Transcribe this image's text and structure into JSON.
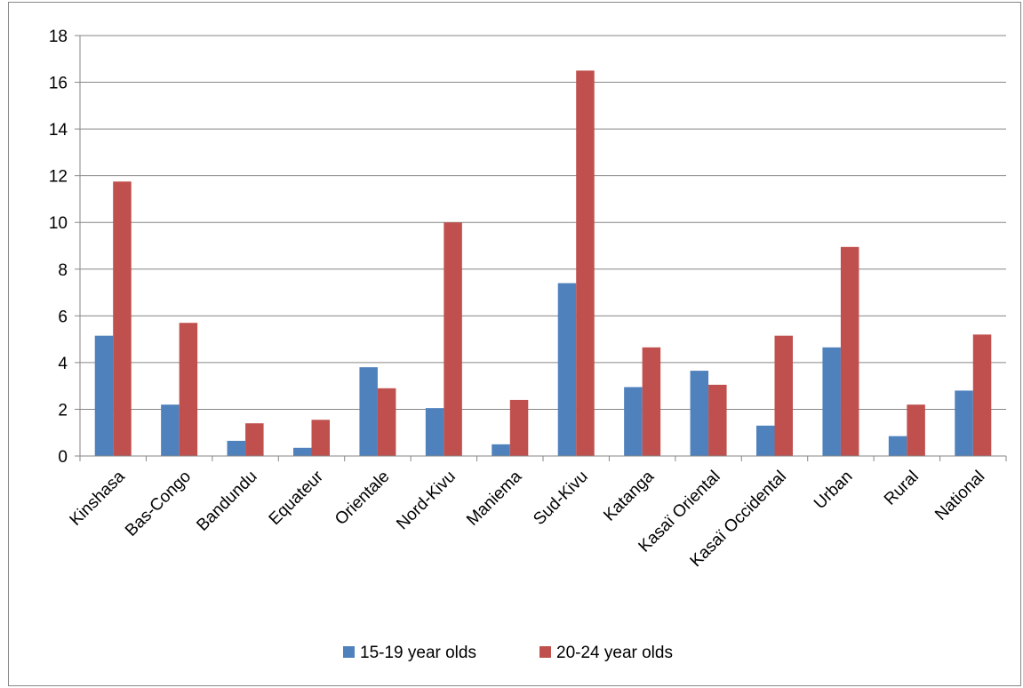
{
  "chart_data": {
    "type": "bar",
    "title": "",
    "xlabel": "",
    "ylabel": "",
    "ylim": [
      0,
      18
    ],
    "yticks": [
      0,
      2,
      4,
      6,
      8,
      10,
      12,
      14,
      16,
      18
    ],
    "grid": true,
    "legend_position": "bottom",
    "categories": [
      "Kinshasa",
      "Bas-Congo",
      "Bandundu",
      "Equateur",
      "Orientale",
      "Nord-Kivu",
      "Maniema",
      "Sud-Kivu",
      "Katanga",
      "Kasaï Oriental",
      "Kasaï Occidental",
      "Urban",
      "Rural",
      "National"
    ],
    "series": [
      {
        "name": "15-19 year olds",
        "color": "#4F81BD",
        "values": [
          5.15,
          2.2,
          0.65,
          0.35,
          3.8,
          2.05,
          0.5,
          7.4,
          2.95,
          3.65,
          1.3,
          4.65,
          0.85,
          2.8
        ]
      },
      {
        "name": "20-24 year olds",
        "color": "#C0504D",
        "values": [
          11.75,
          5.7,
          1.4,
          1.55,
          2.9,
          10.0,
          2.4,
          16.5,
          4.65,
          3.05,
          5.15,
          8.95,
          2.2,
          5.2
        ]
      }
    ]
  }
}
